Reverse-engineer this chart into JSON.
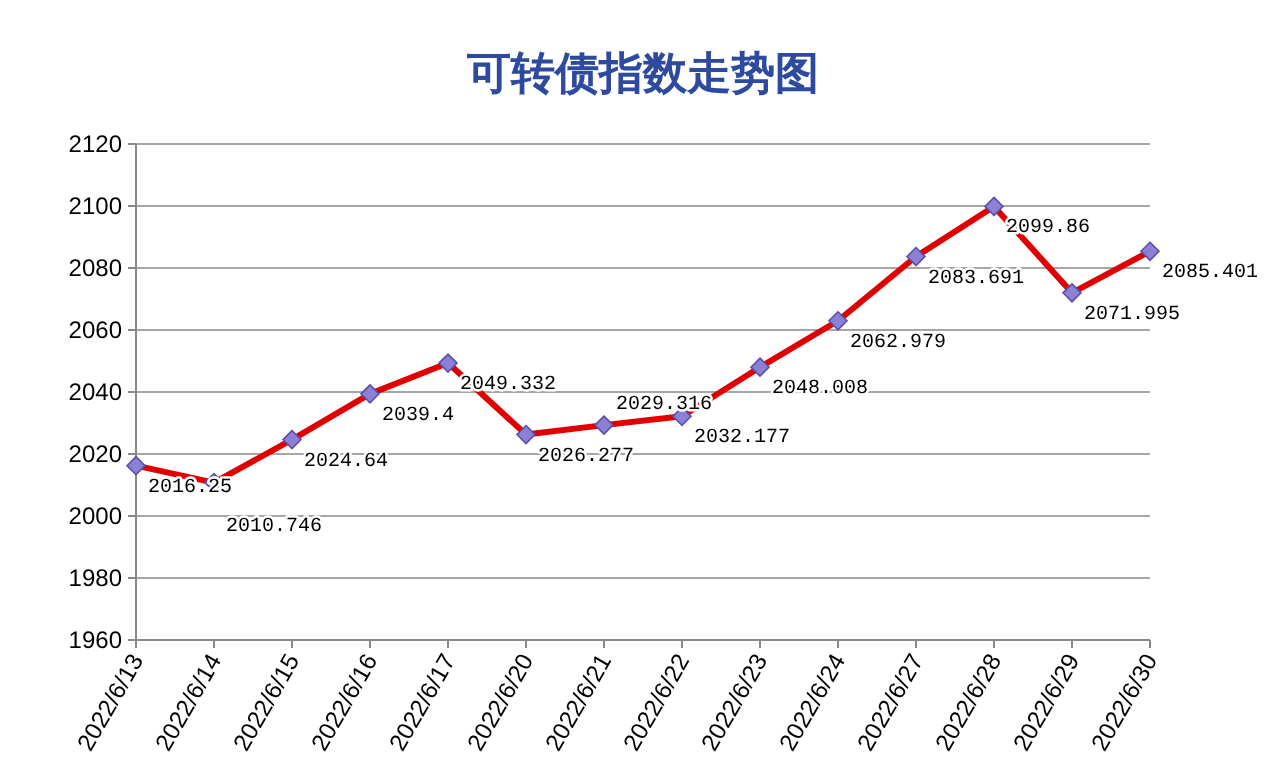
{
  "chart_data": {
    "type": "line",
    "title": "可转债指数走势图",
    "categories": [
      "2022/6/13",
      "2022/6/14",
      "2022/6/15",
      "2022/6/16",
      "2022/6/17",
      "2022/6/20",
      "2022/6/21",
      "2022/6/22",
      "2022/6/23",
      "2022/6/24",
      "2022/6/27",
      "2022/6/28",
      "2022/6/29",
      "2022/6/30"
    ],
    "series": [
      {
        "color": "#e00000",
        "values": [
          2016.25,
          2010.746,
          2024.64,
          2039.4,
          2049.332,
          2026.277,
          2029.316,
          2032.177,
          2048.008,
          2062.979,
          2083.691,
          2099.86,
          2071.995,
          2085.401
        ]
      }
    ],
    "ylim": [
      1960,
      2120
    ],
    "yticks": [
      1960,
      1980,
      2000,
      2020,
      2040,
      2060,
      2080,
      2100,
      2120
    ],
    "grid": "y",
    "marker": "diamond",
    "data_labels": true
  }
}
